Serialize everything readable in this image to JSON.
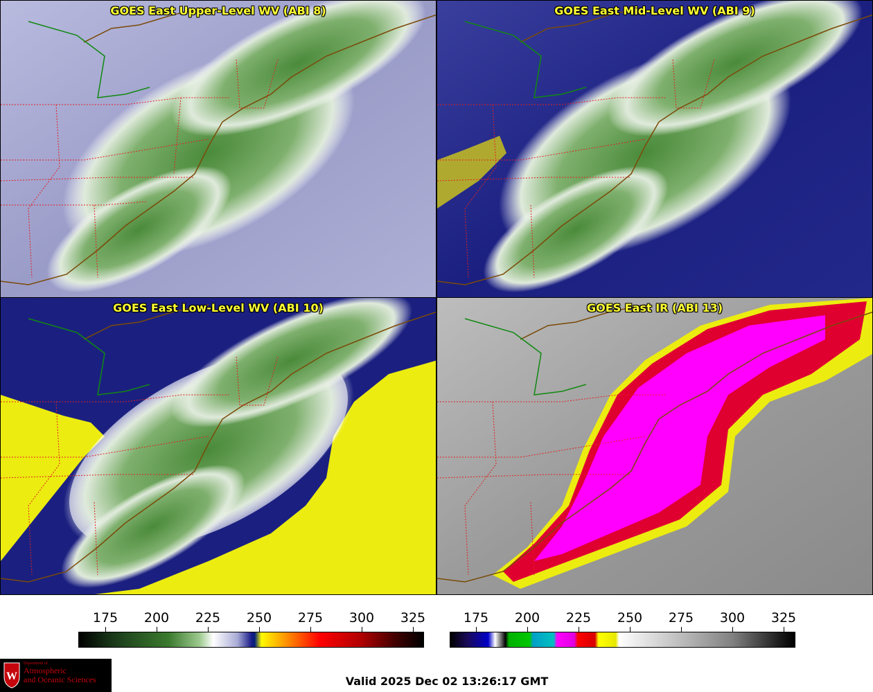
{
  "panels": [
    {
      "title": "GOES East Upper-Level WV (ABI 8)",
      "palette": "wv",
      "background": "#9a9cc8",
      "edge": "#c8cae6"
    },
    {
      "title": "GOES East Mid-Level WV (ABI 9)",
      "palette": "wv",
      "background": "#1b2080",
      "edge": "#4a4fa6"
    },
    {
      "title": "GOES East Low-Level WV (ABI 10)",
      "palette": "wv",
      "background": "#ecec10",
      "edge": "#1b2080"
    },
    {
      "title": "GOES East IR (ABI 13)",
      "palette": "ir",
      "background": "#8c8c8c",
      "edge": "#d0d0d0"
    }
  ],
  "colorbars": {
    "wv": {
      "ticks": [
        "175",
        "200",
        "225",
        "250",
        "275",
        "300",
        "325"
      ]
    },
    "ir": {
      "ticks": [
        "175",
        "200",
        "225",
        "250",
        "275",
        "300",
        "325"
      ]
    }
  },
  "colors": {
    "title_text": "#ffff33",
    "coastline": "#7a4a08",
    "state_borders": "#e02020",
    "intl_border": "#118811"
  },
  "logo": {
    "line1": "Department of",
    "line2": "Atmospheric",
    "line3": "and Oceanic Sciences",
    "crest_letter": "W"
  },
  "footer": {
    "valid": "Valid 2025 Dec 02 13:26:17 GMT"
  }
}
